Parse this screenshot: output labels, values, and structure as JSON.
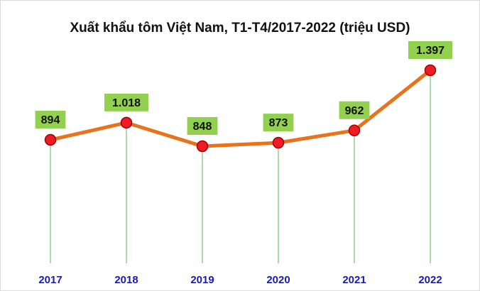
{
  "chart_data": {
    "type": "line",
    "title": "Xuất khẩu tôm Việt Nam, T1-T4/2017-2022 (triệu USD)",
    "categories": [
      "2017",
      "2018",
      "2019",
      "2020",
      "2021",
      "2022"
    ],
    "series": [
      {
        "values": [
          894,
          1018,
          848,
          873,
          962,
          1397
        ],
        "labels": [
          "894",
          "1.018",
          "848",
          "873",
          "962",
          "1.397"
        ]
      }
    ],
    "ylim": [
      780,
      1420
    ],
    "grid": false,
    "legend": "none"
  },
  "colors": {
    "line": "#e8731c",
    "marker_fill": "#ee1c24",
    "marker_stroke": "#a40000",
    "label_box": "#92d050",
    "drop_line": "#7cc576",
    "axis_text": "#1a1ab8"
  }
}
